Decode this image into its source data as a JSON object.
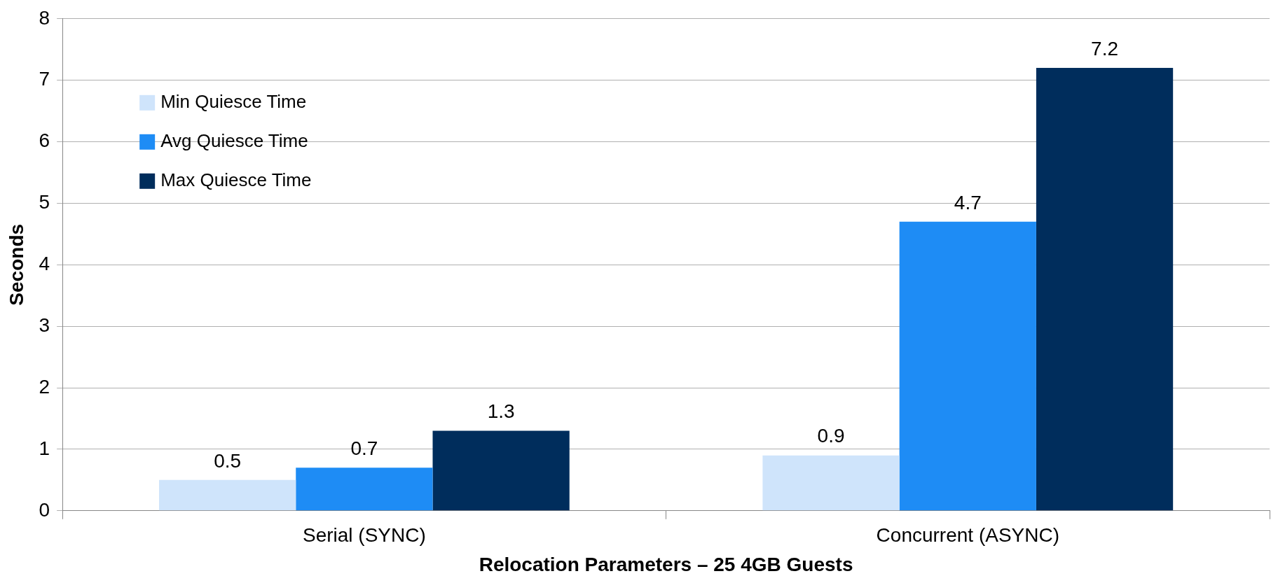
{
  "chart_data": {
    "type": "bar",
    "xlabel": "Relocation Parameters – 25 4GB Guests",
    "ylabel": "Seconds",
    "categories": [
      "Serial (SYNC)",
      "Concurrent (ASYNC)"
    ],
    "series": [
      {
        "name": "Min Quiesce Time",
        "color": "#cfe4fb",
        "values": [
          0.5,
          0.9
        ]
      },
      {
        "name": "Avg Quiesce Time",
        "color": "#1e8cf5",
        "values": [
          0.7,
          4.7
        ]
      },
      {
        "name": "Max Quiesce Time",
        "color": "#002d5c",
        "values": [
          1.3,
          7.2
        ]
      }
    ],
    "ylim": [
      0,
      8
    ],
    "yticks": [
      0,
      1,
      2,
      3,
      4,
      5,
      6,
      7,
      8
    ],
    "grid": "y",
    "legend": "top left",
    "data_labels": true
  }
}
